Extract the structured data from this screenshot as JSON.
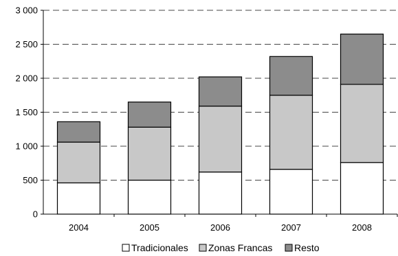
{
  "chart_data": {
    "type": "bar",
    "stacked": true,
    "categories": [
      "2004",
      "2005",
      "2006",
      "2007",
      "2008"
    ],
    "series": [
      {
        "name": "Tradicionales",
        "values": [
          460,
          500,
          620,
          660,
          760
        ],
        "color": "#ffffff"
      },
      {
        "name": "Zonas Francas",
        "values": [
          600,
          780,
          970,
          1090,
          1150
        ],
        "color": "#c8c8c8"
      },
      {
        "name": "Resto",
        "values": [
          300,
          370,
          430,
          570,
          740
        ],
        "color": "#8c8c8c"
      }
    ],
    "ylim": [
      0,
      3000
    ],
    "yticks": [
      0,
      500,
      1000,
      1500,
      2000,
      2500,
      3000
    ],
    "ytick_labels": [
      "0",
      "500",
      "1 000",
      "1 500",
      "2 000",
      "2 500",
      "3 000"
    ],
    "grid": true,
    "legend_position": "bottom",
    "title": "",
    "xlabel": "",
    "ylabel": ""
  }
}
